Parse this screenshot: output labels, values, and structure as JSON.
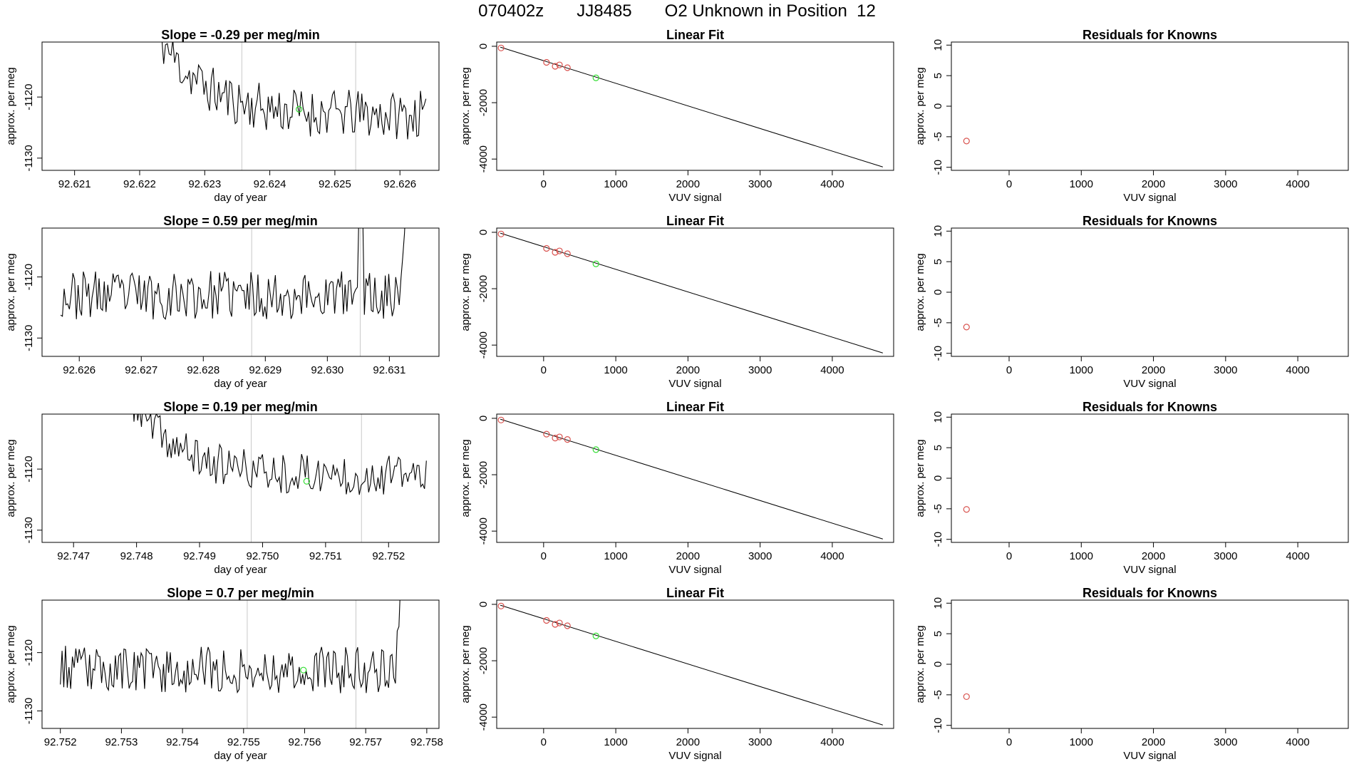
{
  "page": {
    "title_parts": [
      "070402z",
      "JJ8485",
      "O2 Unknown in Position  12"
    ]
  },
  "style": {
    "line_color": "#000000",
    "box_color": "#000000",
    "known_point_color": "#d9534f",
    "unknown_point_color": "#33dd33",
    "injection_line_color": "#c8c8c8"
  },
  "chart_data": [
    {
      "panel": "row1-timeseries",
      "type": "line",
      "title": "Slope =  -0.29  per meg/min",
      "xlabel": "day of year",
      "ylabel": "approx. per meg",
      "xlim": [
        92.6205,
        92.6266
      ],
      "ylim": [
        -1132,
        -1111
      ],
      "xticks": [
        92.621,
        92.622,
        92.623,
        92.624,
        92.625,
        92.626
      ],
      "xtick_labels": [
        "92.621",
        "92.622",
        "92.623",
        "92.624",
        "92.625",
        "92.626"
      ],
      "yticks": [
        -1130,
        -1120
      ],
      "ytick_labels": [
        "-1130",
        "-1120"
      ],
      "x_start": 92.6222,
      "x_end": 92.6264,
      "n_points": 150,
      "start_value": -1108,
      "settle_value": -1123,
      "noise": 1.9,
      "settle_days": 0.0007,
      "seed": 11,
      "vlines": [
        92.62357,
        92.62532
      ],
      "unknown_point": {
        "x": 92.62445,
        "y": -1122
      }
    },
    {
      "panel": "row1-linearfit",
      "type": "scatter",
      "title": "Linear Fit",
      "xlabel": "VUV signal",
      "ylabel": "approx. per meg",
      "xlim": [
        -650,
        4850
      ],
      "ylim": [
        -4400,
        150
      ],
      "xticks": [
        0,
        1000,
        2000,
        3000,
        4000
      ],
      "xtick_labels": [
        "0",
        "1000",
        "2000",
        "3000",
        "4000"
      ],
      "yticks": [
        0,
        -2000,
        -4000
      ],
      "ytick_labels": [
        "0",
        "-2000",
        "-4000"
      ],
      "fit_line": {
        "x": [
          -600,
          4700
        ],
        "y": [
          -30,
          -4280
        ]
      },
      "known_points": [
        {
          "x": -590,
          "y": -60
        },
        {
          "x": 40,
          "y": -570
        },
        {
          "x": 160,
          "y": -710
        },
        {
          "x": 220,
          "y": -660
        },
        {
          "x": 330,
          "y": -760
        }
      ],
      "unknown_points": [
        {
          "x": 725,
          "y": -1120
        }
      ]
    },
    {
      "panel": "row1-residuals",
      "type": "scatter",
      "title": "Residuals for Knowns",
      "xlabel": "VUV signal",
      "ylabel": "approx. per meg",
      "xlim": [
        -800,
        4700
      ],
      "ylim": [
        -10.5,
        10.5
      ],
      "xticks": [
        0,
        1000,
        2000,
        3000,
        4000
      ],
      "xtick_labels": [
        "0",
        "1000",
        "2000",
        "3000",
        "4000"
      ],
      "yticks": [
        10,
        5,
        0,
        -5,
        -10
      ],
      "ytick_labels": [
        "10",
        "5",
        "0",
        "-5",
        "-10"
      ],
      "show_axis_line": false,
      "known_points": [
        {
          "x": -590,
          "y": -5.7
        }
      ]
    },
    {
      "panel": "row2-timeseries",
      "type": "line",
      "title": "Slope =  0.59  per meg/min",
      "xlabel": "day of year",
      "ylabel": "approx. per meg",
      "xlim": [
        92.6254,
        92.6318
      ],
      "ylim": [
        -1133,
        -1112
      ],
      "xticks": [
        92.626,
        92.627,
        92.628,
        92.629,
        92.63,
        92.631
      ],
      "xtick_labels": [
        "92.626",
        "92.627",
        "92.628",
        "92.629",
        "92.630",
        "92.631"
      ],
      "yticks": [
        -1130,
        -1120
      ],
      "ytick_labels": [
        "-1130",
        "-1120"
      ],
      "x_start": 92.6257,
      "x_end": 92.6313,
      "n_points": 200,
      "start_value": -1123,
      "settle_value": -1123,
      "noise": 1.9,
      "settle_days": 0.0001,
      "seed": 23,
      "end_spike_days": 0.00018,
      "end_spike_to": -1100,
      "mid_spike": {
        "x": 92.63055,
        "to": -1108
      },
      "vlines": [
        92.62878,
        92.63053
      ],
      "unknown_point": null
    },
    {
      "panel": "row2-linearfit",
      "type": "scatter",
      "title": "Linear Fit",
      "xlabel": "VUV signal",
      "ylabel": "approx. per meg",
      "xlim": [
        -650,
        4850
      ],
      "ylim": [
        -4400,
        150
      ],
      "xticks": [
        0,
        1000,
        2000,
        3000,
        4000
      ],
      "xtick_labels": [
        "0",
        "1000",
        "2000",
        "3000",
        "4000"
      ],
      "yticks": [
        0,
        -2000,
        -4000
      ],
      "ytick_labels": [
        "0",
        "-2000",
        "-4000"
      ],
      "fit_line": {
        "x": [
          -600,
          4700
        ],
        "y": [
          -30,
          -4280
        ]
      },
      "known_points": [
        {
          "x": -590,
          "y": -60
        },
        {
          "x": 40,
          "y": -570
        },
        {
          "x": 160,
          "y": -710
        },
        {
          "x": 220,
          "y": -660
        },
        {
          "x": 330,
          "y": -760
        }
      ],
      "unknown_points": [
        {
          "x": 725,
          "y": -1120
        }
      ]
    },
    {
      "panel": "row2-residuals",
      "type": "scatter",
      "title": "Residuals for Knowns",
      "xlabel": "VUV signal",
      "ylabel": "approx. per meg",
      "xlim": [
        -800,
        4700
      ],
      "ylim": [
        -10.5,
        10.5
      ],
      "xticks": [
        0,
        1000,
        2000,
        3000,
        4000
      ],
      "xtick_labels": [
        "0",
        "1000",
        "2000",
        "3000",
        "4000"
      ],
      "yticks": [
        10,
        5,
        0,
        -5,
        -10
      ],
      "ytick_labels": [
        "10",
        "5",
        "0",
        "-5",
        "-10"
      ],
      "show_axis_line": true,
      "known_points": [
        {
          "x": -590,
          "y": -5.7
        }
      ]
    },
    {
      "panel": "row3-timeseries",
      "type": "line",
      "title": "Slope =  0.19  per meg/min",
      "xlabel": "day of year",
      "ylabel": "approx. per meg",
      "xlim": [
        92.7465,
        92.7528
      ],
      "ylim": [
        -1132,
        -1111
      ],
      "xticks": [
        92.747,
        92.748,
        92.749,
        92.75,
        92.751,
        92.752
      ],
      "xtick_labels": [
        "92.747",
        "92.748",
        "92.749",
        "92.750",
        "92.751",
        "92.752"
      ],
      "yticks": [
        -1130,
        -1120
      ],
      "ytick_labels": [
        "-1130",
        "-1120"
      ],
      "x_start": 92.7479,
      "x_end": 92.7526,
      "n_points": 160,
      "start_value": -1108,
      "settle_value": -1121,
      "noise": 1.6,
      "settle_days": 0.0007,
      "seed": 37,
      "vlines": [
        92.74982,
        92.75157
      ],
      "unknown_point": {
        "x": 92.7507,
        "y": -1122
      }
    },
    {
      "panel": "row3-linearfit",
      "type": "scatter",
      "title": "Linear Fit",
      "xlabel": "VUV signal",
      "ylabel": "approx. per meg",
      "xlim": [
        -650,
        4850
      ],
      "ylim": [
        -4400,
        150
      ],
      "xticks": [
        0,
        1000,
        2000,
        3000,
        4000
      ],
      "xtick_labels": [
        "0",
        "1000",
        "2000",
        "3000",
        "4000"
      ],
      "yticks": [
        0,
        -2000,
        -4000
      ],
      "ytick_labels": [
        "0",
        "-2000",
        "-4000"
      ],
      "fit_line": {
        "x": [
          -600,
          4700
        ],
        "y": [
          -30,
          -4280
        ]
      },
      "known_points": [
        {
          "x": -590,
          "y": -60
        },
        {
          "x": 40,
          "y": -560
        },
        {
          "x": 160,
          "y": -700
        },
        {
          "x": 220,
          "y": -660
        },
        {
          "x": 330,
          "y": -750
        }
      ],
      "unknown_points": [
        {
          "x": 725,
          "y": -1110
        }
      ]
    },
    {
      "panel": "row3-residuals",
      "type": "scatter",
      "title": "Residuals for Knowns",
      "xlabel": "VUV signal",
      "ylabel": "approx. per meg",
      "xlim": [
        -800,
        4700
      ],
      "ylim": [
        -10.5,
        10.5
      ],
      "xticks": [
        0,
        1000,
        2000,
        3000,
        4000
      ],
      "xtick_labels": [
        "0",
        "1000",
        "2000",
        "3000",
        "4000"
      ],
      "yticks": [
        10,
        5,
        0,
        -5,
        -10
      ],
      "ytick_labels": [
        "10",
        "5",
        "0",
        "-5",
        "-10"
      ],
      "show_axis_line": true,
      "known_points": [
        {
          "x": -590,
          "y": -5.1
        }
      ]
    },
    {
      "panel": "row4-timeseries",
      "type": "line",
      "title": "Slope =  0.7  per meg/min",
      "xlabel": "day of year",
      "ylabel": "approx. per meg",
      "xlim": [
        92.7517,
        92.7582
      ],
      "ylim": [
        -1133,
        -1111
      ],
      "xticks": [
        92.752,
        92.753,
        92.754,
        92.755,
        92.756,
        92.757,
        92.758
      ],
      "xtick_labels": [
        "92.752",
        "92.753",
        "92.754",
        "92.755",
        "92.756",
        "92.757",
        "92.758"
      ],
      "yticks": [
        -1130,
        -1120
      ],
      "ytick_labels": [
        "-1130",
        "-1120"
      ],
      "x_start": 92.752,
      "x_end": 92.7576,
      "n_points": 200,
      "start_value": -1122,
      "settle_value": -1123,
      "noise": 1.9,
      "settle_days": 0.0001,
      "seed": 53,
      "end_spike_days": 0.00015,
      "end_spike_to": -1100,
      "vlines": [
        92.75506,
        92.75684
      ],
      "unknown_point": {
        "x": 92.75598,
        "y": -1123
      }
    },
    {
      "panel": "row4-linearfit",
      "type": "scatter",
      "title": "Linear Fit",
      "xlabel": "VUV signal",
      "ylabel": "approx. per meg",
      "xlim": [
        -650,
        4850
      ],
      "ylim": [
        -4400,
        150
      ],
      "xticks": [
        0,
        1000,
        2000,
        3000,
        4000
      ],
      "xtick_labels": [
        "0",
        "1000",
        "2000",
        "3000",
        "4000"
      ],
      "yticks": [
        0,
        -2000,
        -4000
      ],
      "ytick_labels": [
        "0",
        "-2000",
        "-4000"
      ],
      "fit_line": {
        "x": [
          -600,
          4700
        ],
        "y": [
          -30,
          -4280
        ]
      },
      "known_points": [
        {
          "x": -590,
          "y": -60
        },
        {
          "x": 40,
          "y": -570
        },
        {
          "x": 160,
          "y": -710
        },
        {
          "x": 220,
          "y": -660
        },
        {
          "x": 330,
          "y": -760
        }
      ],
      "unknown_points": [
        {
          "x": 725,
          "y": -1120
        }
      ]
    },
    {
      "panel": "row4-residuals",
      "type": "scatter",
      "title": "Residuals for Knowns",
      "xlabel": "VUV signal",
      "ylabel": "approx. per meg",
      "xlim": [
        -800,
        4700
      ],
      "ylim": [
        -10.5,
        10.5
      ],
      "xticks": [
        0,
        1000,
        2000,
        3000,
        4000
      ],
      "xtick_labels": [
        "0",
        "1000",
        "2000",
        "3000",
        "4000"
      ],
      "yticks": [
        10,
        5,
        0,
        -5,
        -10
      ],
      "ytick_labels": [
        "10",
        "5",
        "0",
        "-5",
        "-10"
      ],
      "show_axis_line": true,
      "known_points": [
        {
          "x": -590,
          "y": -5.3
        }
      ]
    }
  ]
}
